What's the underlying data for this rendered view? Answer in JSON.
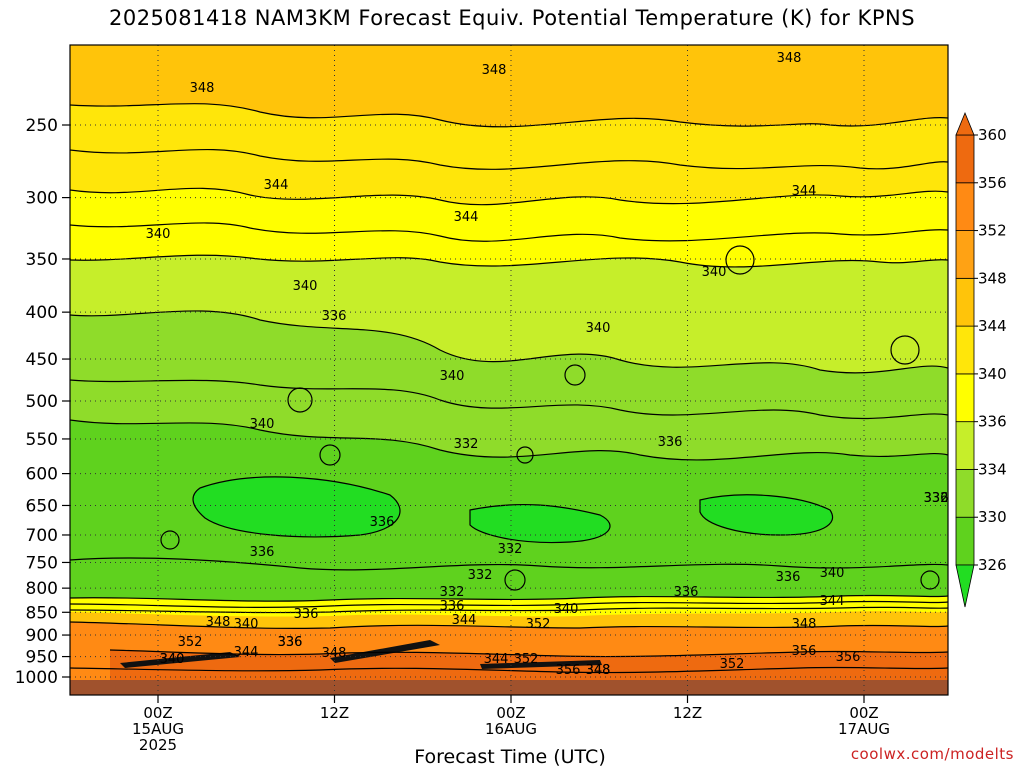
{
  "title": "2025081418 NAM3KM Forecast Equiv. Potential Temperature (K) for KPNS",
  "xlabel": "Forecast Time (UTC)",
  "credit": "coolwx.com/modelts",
  "colors": {
    "c326": "#22dd22",
    "c330": "#5fd21e",
    "c334": "#8fdc2a",
    "c336": "#c6ee2a",
    "c340": "#ffff00",
    "c344": "#ffe60a",
    "c348": "#ffc40a",
    "c352": "#ffa214",
    "c356": "#ff8a14",
    "c360": "#ee6a10",
    "ground": "#a0522d"
  },
  "chart_data": {
    "type": "heatmap",
    "title": "2025081418 NAM3KM Forecast Equiv. Potential Temperature (K) for KPNS",
    "xlabel": "Forecast Time (UTC)",
    "ylabel": "",
    "y_axis": "pressure (hPa), log scale, inverted",
    "y_ticks": [
      250,
      300,
      350,
      400,
      450,
      500,
      550,
      600,
      650,
      700,
      750,
      800,
      850,
      900,
      950,
      1000
    ],
    "x_ticks": [
      {
        "line1": "00Z",
        "line2": "15AUG",
        "line3": "2025"
      },
      {
        "line1": "12Z",
        "line2": "",
        "line3": ""
      },
      {
        "line1": "00Z",
        "line2": "16AUG",
        "line3": ""
      },
      {
        "line1": "12Z",
        "line2": "",
        "line3": ""
      },
      {
        "line1": "00Z",
        "line2": "17AUG",
        "line3": ""
      }
    ],
    "colorbar": [
      326,
      330,
      334,
      336,
      340,
      344,
      348,
      352,
      356,
      360
    ],
    "grid": true,
    "contour_labels": [
      "348",
      "348",
      "348",
      "344",
      "344",
      "344",
      "340",
      "340",
      "340",
      "340",
      "340",
      "336",
      "340",
      "332",
      "336",
      "336",
      "336",
      "332",
      "332",
      "332",
      "336",
      "336",
      "336",
      "340",
      "332",
      "336",
      "336",
      "340",
      "344",
      "348",
      "352",
      "340",
      "336",
      "344",
      "348",
      "352",
      "344",
      "352",
      "348",
      "340",
      "356",
      "348",
      "340",
      "344",
      "352",
      "348",
      "356",
      "356",
      "336"
    ]
  }
}
